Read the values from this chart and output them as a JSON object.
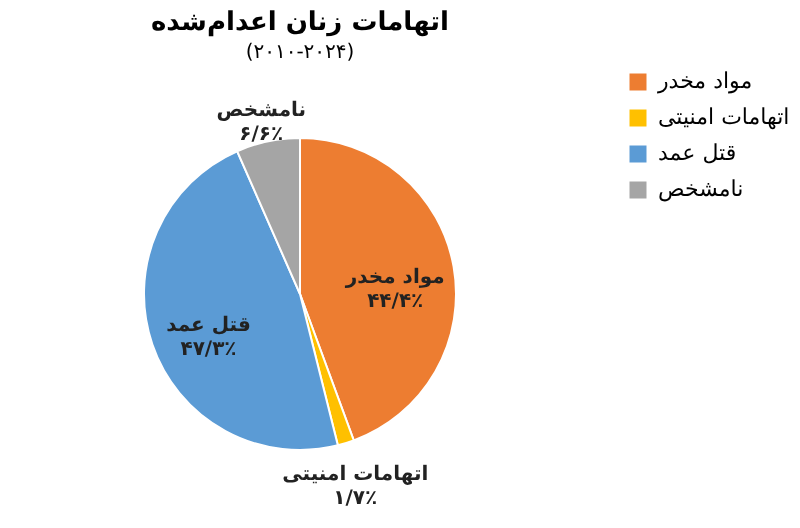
{
  "chart_data": {
    "type": "pie",
    "title": "اتهامات زنان اعدام‌شده",
    "subtitle": "(۲۰۱۰-۲۰۲۴)",
    "categories": [
      "مواد مخدر",
      "اتهامات امنیتی",
      "قتل عمد",
      "نامشخص"
    ],
    "values": [
      44.4,
      1.7,
      47.3,
      6.6
    ],
    "colors": [
      "#ed7d31",
      "#ffc000",
      "#5b9bd5",
      "#a5a5a5"
    ],
    "value_labels": [
      "۴۴/۴٪",
      "۱/۷٪",
      "۴۷/۳٪",
      "۶/۶٪"
    ],
    "legend": "right"
  }
}
